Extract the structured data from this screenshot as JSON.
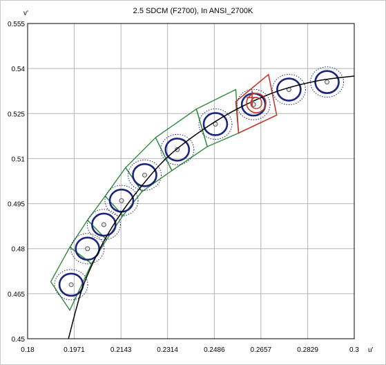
{
  "chart_data": {
    "type": "scatter",
    "title": "2.5 SDCM (F2700), In ANSI_2700K",
    "xlabel": "u'",
    "ylabel": "v'",
    "xlim": [
      0.18,
      0.3
    ],
    "ylim": [
      0.45,
      0.555
    ],
    "x_ticks": [
      "0.18",
      "0.1971",
      "0.2143",
      "0.2314",
      "0.2486",
      "0.2657",
      "0.2829",
      "0.3"
    ],
    "y_ticks": [
      "0.555",
      "0.54",
      "0.525",
      "0.51",
      "0.495",
      "0.48",
      "0.465",
      "0.45"
    ],
    "grid": true,
    "colors": {
      "locus": "#000000",
      "ellipse": "#1a237e",
      "ellipse_dotted": "#1a237e",
      "quad_green": "#2e8b3d",
      "quad_red": "#c0392b",
      "point": "#555555"
    },
    "planckian_locus": [
      {
        "u": 0.195,
        "v": 0.45
      },
      {
        "u": 0.2,
        "v": 0.4665
      },
      {
        "u": 0.206,
        "v": 0.479
      },
      {
        "u": 0.213,
        "v": 0.49
      },
      {
        "u": 0.222,
        "v": 0.501
      },
      {
        "u": 0.232,
        "v": 0.511
      },
      {
        "u": 0.245,
        "v": 0.52
      },
      {
        "u": 0.258,
        "v": 0.527
      },
      {
        "u": 0.272,
        "v": 0.5325
      },
      {
        "u": 0.287,
        "v": 0.536
      },
      {
        "u": 0.3,
        "v": 0.5375
      }
    ],
    "ellipse_centers": [
      {
        "u": 0.196,
        "v": 0.468
      },
      {
        "u": 0.202,
        "v": 0.48
      },
      {
        "u": 0.208,
        "v": 0.488
      },
      {
        "u": 0.2145,
        "v": 0.496
      },
      {
        "u": 0.223,
        "v": 0.5045
      },
      {
        "u": 0.235,
        "v": 0.513
      },
      {
        "u": 0.249,
        "v": 0.5215
      },
      {
        "u": 0.263,
        "v": 0.528
      },
      {
        "u": 0.276,
        "v": 0.533
      },
      {
        "u": 0.29,
        "v": 0.5355
      }
    ],
    "quadrangles_green": [
      [
        {
          "u": 0.1885,
          "v": 0.469
        },
        {
          "u": 0.1955,
          "v": 0.4595
        },
        {
          "u": 0.2035,
          "v": 0.475
        },
        {
          "u": 0.1955,
          "v": 0.4805
        }
      ],
      [
        {
          "u": 0.1955,
          "v": 0.4805
        },
        {
          "u": 0.2035,
          "v": 0.475
        },
        {
          "u": 0.209,
          "v": 0.483
        },
        {
          "u": 0.202,
          "v": 0.4895
        }
      ],
      [
        {
          "u": 0.202,
          "v": 0.4895
        },
        {
          "u": 0.209,
          "v": 0.483
        },
        {
          "u": 0.215,
          "v": 0.491
        },
        {
          "u": 0.2085,
          "v": 0.4975
        }
      ],
      [
        {
          "u": 0.2085,
          "v": 0.4975
        },
        {
          "u": 0.215,
          "v": 0.491
        },
        {
          "u": 0.222,
          "v": 0.499
        },
        {
          "u": 0.216,
          "v": 0.507
        }
      ],
      [
        {
          "u": 0.216,
          "v": 0.507
        },
        {
          "u": 0.222,
          "v": 0.499
        },
        {
          "u": 0.233,
          "v": 0.506
        },
        {
          "u": 0.227,
          "v": 0.517
        }
      ],
      [
        {
          "u": 0.227,
          "v": 0.517
        },
        {
          "u": 0.233,
          "v": 0.506
        },
        {
          "u": 0.246,
          "v": 0.514
        },
        {
          "u": 0.242,
          "v": 0.5265
        }
      ],
      [
        {
          "u": 0.242,
          "v": 0.5265
        },
        {
          "u": 0.246,
          "v": 0.514
        },
        {
          "u": 0.2575,
          "v": 0.5185
        },
        {
          "u": 0.2565,
          "v": 0.533
        }
      ]
    ],
    "quadrangle_red": [
      {
        "u": 0.2565,
        "v": 0.529
      },
      {
        "u": 0.2575,
        "v": 0.5185
      },
      {
        "u": 0.2715,
        "v": 0.5245
      },
      {
        "u": 0.2685,
        "v": 0.538
      }
    ],
    "target_marker": {
      "u": 0.264,
      "v": 0.5285
    }
  }
}
